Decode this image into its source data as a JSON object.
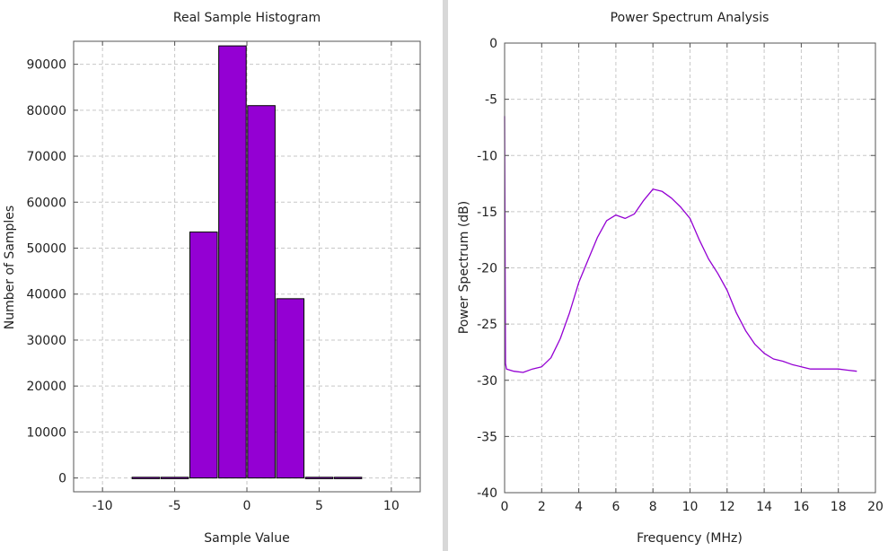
{
  "colors": {
    "background": "#ffffff",
    "series": "#9400d3",
    "bar_fill": "#9400d3",
    "bar_stroke": "#000000",
    "divider": "#d8d8d8"
  },
  "chart_data": [
    {
      "type": "bar",
      "title": "Real Sample Histogram",
      "xlabel": "Sample Value",
      "ylabel": "Number of Samples",
      "xlim": [
        -12,
        12
      ],
      "ylim": [
        -3000,
        95000
      ],
      "xticks": [
        -10,
        -5,
        0,
        5,
        10
      ],
      "yticks": [
        0,
        10000,
        20000,
        30000,
        40000,
        50000,
        60000,
        70000,
        80000,
        90000
      ],
      "grid": true,
      "x": [
        -7,
        -5,
        -3,
        -1,
        1,
        3,
        5,
        7
      ],
      "values": [
        150,
        150,
        53500,
        94000,
        81000,
        39000,
        150,
        150
      ]
    },
    {
      "type": "line",
      "title": "Power Spectrum Analysis",
      "xlabel": "Frequency (MHz)",
      "ylabel": "Power Spectrum (dB)",
      "xlim": [
        0,
        20
      ],
      "ylim": [
        -40,
        0
      ],
      "xticks": [
        0,
        2,
        4,
        6,
        8,
        10,
        12,
        14,
        16,
        18,
        20
      ],
      "yticks": [
        0,
        -5,
        -10,
        -15,
        -20,
        -25,
        -30,
        -35,
        -40
      ],
      "grid": true,
      "series": [
        {
          "x": [
            0.0,
            0.05,
            0.1,
            0.5,
            1.0,
            1.5,
            2.0,
            2.5,
            3.0,
            3.5,
            4.0,
            4.5,
            5.0,
            5.5,
            6.0,
            6.5,
            7.0,
            7.5,
            8.0,
            8.5,
            9.0,
            9.5,
            10.0,
            10.5,
            11.0,
            11.5,
            12.0,
            12.5,
            13.0,
            13.5,
            14.0,
            14.5,
            15.0,
            15.5,
            16.0,
            16.5,
            17.0,
            17.5,
            18.0,
            18.5,
            19.0
          ],
          "values": [
            -6.5,
            -28.5,
            -29.0,
            -29.2,
            -29.3,
            -29.0,
            -28.8,
            -28.0,
            -26.3,
            -24.0,
            -21.3,
            -19.3,
            -17.3,
            -15.8,
            -15.3,
            -15.6,
            -15.2,
            -14.0,
            -13.0,
            -13.2,
            -13.8,
            -14.6,
            -15.6,
            -17.5,
            -19.2,
            -20.5,
            -22.0,
            -24.0,
            -25.6,
            -26.8,
            -27.6,
            -28.1,
            -28.3,
            -28.6,
            -28.8,
            -29.0,
            -29.0,
            -29.0,
            -29.0,
            -29.1,
            -29.2
          ]
        }
      ]
    }
  ]
}
